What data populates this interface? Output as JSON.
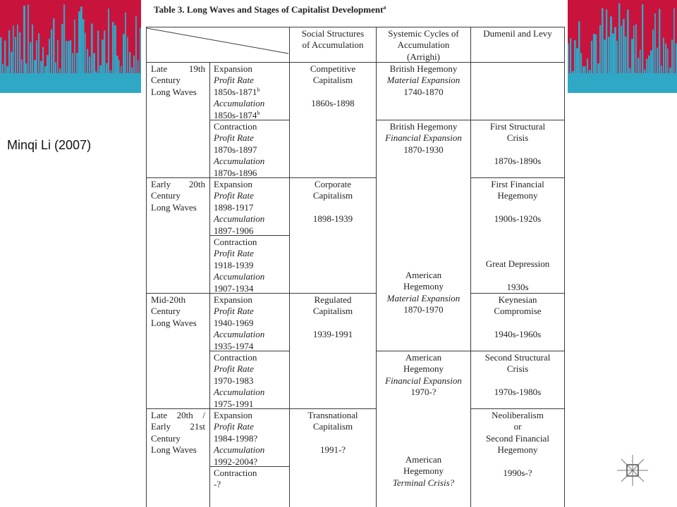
{
  "slide": {
    "caption": "Minqi Li (2007)"
  },
  "table": {
    "title": "Table 3. Long Waves and Stages of Capitalist Development",
    "title_note": "a",
    "header": {
      "ssa": [
        [
          "Social Structures",
          "of Accumulation"
        ]
      ],
      "cycles": [
        [
          "Systemic Cycles of",
          "Accumulation",
          "(Arrighi)"
        ]
      ],
      "dumenil": [
        [
          "Dumenil and Levy"
        ]
      ]
    },
    "periods": [
      [
        [
          "Late 19th",
          "Century",
          "Long Waves"
        ]
      ],
      [
        [
          "Early 20th",
          "Century",
          "Long Waves"
        ]
      ],
      [
        [
          "Mid-20th",
          "Century",
          "Long Waves"
        ]
      ],
      [
        [
          "Late 20th /",
          "Early 21st",
          "Century",
          "Long Waves"
        ]
      ]
    ],
    "phases": [
      [
        [
          "Expansion",
          {
            "text": "Profit Rate",
            "italic": true
          },
          {
            "text": "1850s-1871",
            "sup": "b"
          },
          {
            "text": "Accumulation",
            "italic": true
          },
          {
            "text": "1850s-1874",
            "sup": "b"
          }
        ]
      ],
      [
        [
          "Contraction",
          {
            "text": "Profit Rate",
            "italic": true
          },
          "1870s-1897",
          {
            "text": "Accumulation",
            "italic": true
          },
          "1870s-1896"
        ]
      ],
      [
        [
          "Expansion",
          {
            "text": "Profit Rate",
            "italic": true
          },
          "1898-1917",
          {
            "text": "Accumulation",
            "italic": true
          },
          "1897-1906"
        ]
      ],
      [
        [
          "Contraction",
          {
            "text": "Profit Rate",
            "italic": true
          },
          "1918-1939",
          {
            "text": "Accumulation",
            "italic": true
          },
          "1907-1934"
        ]
      ],
      [
        [
          "Expansion",
          {
            "text": "Profit Rate",
            "italic": true
          },
          "1940-1969",
          {
            "text": "Accumulation",
            "italic": true
          },
          "1935-1974"
        ]
      ],
      [
        [
          "Contraction",
          {
            "text": "Profit Rate",
            "italic": true
          },
          "1970-1983",
          {
            "text": "Accumulation",
            "italic": true
          },
          "1975-1991"
        ]
      ],
      [
        [
          "Expansion",
          {
            "text": "Profit Rate",
            "italic": true
          },
          "1984-1998?",
          {
            "text": "Accumulation",
            "italic": true
          },
          "1992-2004?"
        ]
      ],
      [
        [
          "Contraction",
          "-?"
        ]
      ]
    ],
    "ssa": [
      [
        [
          "Competitive",
          "Capitalism"
        ],
        [
          "1860s-1898"
        ]
      ],
      [
        [
          "Corporate",
          "Capitalism"
        ],
        [
          "1898-1939"
        ]
      ],
      [
        [
          "Regulated",
          "Capitalism"
        ],
        [
          "1939-1991"
        ]
      ],
      [
        [
          "Transnational",
          "Capitalism"
        ],
        [
          "1991-?"
        ]
      ]
    ],
    "cycles": [
      [
        [
          "British Hegemony",
          {
            "text": "Material Expansion",
            "italic": true
          },
          "1740-1870"
        ]
      ],
      [
        [
          "British Hegemony",
          {
            "text": "Financial Expansion",
            "italic": true
          },
          "1870-1930"
        ],
        [
          "American",
          "Hegemony",
          {
            "text": "Material Expansion",
            "italic": true
          },
          "1870-1970"
        ]
      ],
      [
        [
          "American",
          "Hegemony",
          {
            "text": "Financial Expansion",
            "italic": true
          },
          "1970-?"
        ],
        [
          "American",
          "Hegemony",
          {
            "text": "Terminal Crisis?",
            "italic": true
          }
        ]
      ]
    ],
    "dumenil": [
      [
        [
          "First Structural",
          "Crisis"
        ],
        [
          "1870s-1890s"
        ]
      ],
      [
        [
          "First Financial",
          "Hegemony"
        ],
        [
          "1900s-1920s"
        ],
        [
          "Great Depression"
        ],
        [
          "1930s"
        ]
      ],
      [
        [
          "Keynesian",
          "Compromise"
        ],
        [
          "1940s-1960s"
        ]
      ],
      [
        [
          "Second Structural",
          "Crisis"
        ],
        [
          "1970s-1980s"
        ]
      ],
      [
        [
          "Neoliberalism",
          "or",
          "Second Financial",
          "Hegemony"
        ],
        [
          "1990s-?"
        ]
      ]
    ]
  }
}
